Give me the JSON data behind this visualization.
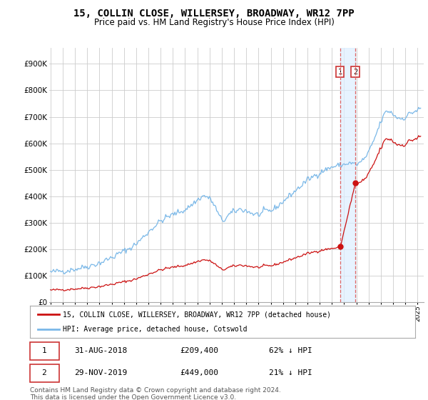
{
  "title": "15, COLLIN CLOSE, WILLERSEY, BROADWAY, WR12 7PP",
  "subtitle": "Price paid vs. HM Land Registry's House Price Index (HPI)",
  "yticks": [
    0,
    100000,
    200000,
    300000,
    400000,
    500000,
    600000,
    700000,
    800000,
    900000
  ],
  "ylim": [
    0,
    960000
  ],
  "xlim_start": 1994.9,
  "xlim_end": 2025.5,
  "hpi_color": "#7ab8e8",
  "price_color": "#cc1111",
  "dashed_line_color": "#dd6666",
  "shade_color": "#ddeeff",
  "legend_label_price": "15, COLLIN CLOSE, WILLERSEY, BROADWAY, WR12 7PP (detached house)",
  "legend_label_hpi": "HPI: Average price, detached house, Cotswold",
  "transaction1_date": "31-AUG-2018",
  "transaction1_price": "£209,400",
  "transaction1_change": "62% ↓ HPI",
  "transaction2_date": "29-NOV-2019",
  "transaction2_price": "£449,000",
  "transaction2_change": "21% ↓ HPI",
  "footnote": "Contains HM Land Registry data © Crown copyright and database right 2024.\nThis data is licensed under the Open Government Licence v3.0.",
  "marker1_x": 2018.667,
  "marker1_y": 209400,
  "marker2_x": 2019.917,
  "marker2_y": 449000,
  "background_color": "#ffffff",
  "grid_color": "#cccccc",
  "title_fontsize": 10,
  "subtitle_fontsize": 8.5
}
